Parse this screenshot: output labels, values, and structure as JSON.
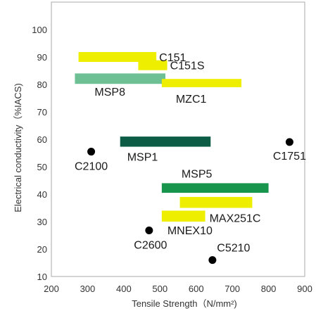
{
  "chart_data": {
    "type": "scatter",
    "xlabel": "Tensile Strength（N/mm²)",
    "ylabel": "Electrical conductivity（%IACS)",
    "xlim": [
      200,
      900
    ],
    "ylim": [
      10,
      110
    ],
    "xticks": [
      "200",
      "300",
      "400",
      "500",
      "600",
      "700",
      "800",
      "900"
    ],
    "yticks": [
      "10",
      "20",
      "30",
      "40",
      "50",
      "60",
      "70",
      "80",
      "90",
      "100"
    ],
    "grid": false,
    "ranges": [
      {
        "name": "C151",
        "x": [
          275,
          490
        ],
        "y": [
          88.2,
          91.8
        ],
        "color": "#eeee00"
      },
      {
        "name": "C151S",
        "x": [
          440,
          520
        ],
        "y": [
          85.2,
          88.8
        ],
        "color": "#eeee00"
      },
      {
        "name": "MSP8",
        "x": [
          265,
          515
        ],
        "y": [
          80.2,
          84.0
        ],
        "color": "#6cc094"
      },
      {
        "name": "MZC1",
        "x": [
          505,
          725
        ],
        "y": [
          79.0,
          82.0
        ],
        "color": "#eeee00"
      },
      {
        "name": "MSP1",
        "x": [
          390,
          640
        ],
        "y": [
          57.3,
          61.0
        ],
        "color": "#0d5c45"
      },
      {
        "name": "MSP5",
        "x": [
          505,
          800
        ],
        "y": [
          40.5,
          44.0
        ],
        "color": "#17954d"
      },
      {
        "name": "MAX251C",
        "x": [
          555,
          755
        ],
        "y": [
          35.0,
          39.0
        ],
        "color": "#eeee00"
      },
      {
        "name": "MNEX10",
        "x": [
          505,
          625
        ],
        "y": [
          30.0,
          34.0
        ],
        "color": "#eeee00"
      }
    ],
    "points": [
      {
        "name": "C2100",
        "x": 310,
        "y": 55.5
      },
      {
        "name": "C1751",
        "x": 858,
        "y": 59.0
      },
      {
        "name": "C2600",
        "x": 470,
        "y": 26.8
      },
      {
        "name": "C5210",
        "x": 645,
        "y": 16.0
      }
    ]
  }
}
